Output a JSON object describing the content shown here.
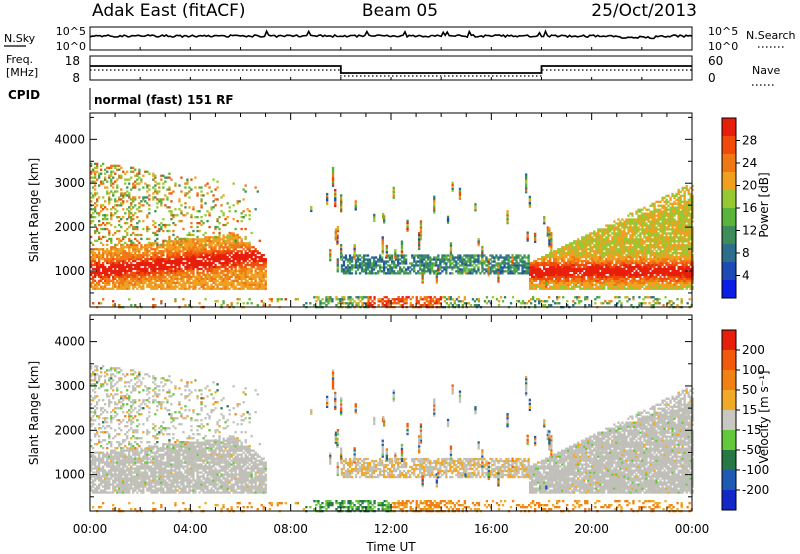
{
  "header": {
    "station": "Adak East (fitACF)",
    "beam": "Beam 05",
    "date": "25/Oct/2013"
  },
  "top_panels": {
    "nsky_label": "N.Sky",
    "nsearch_label": "N.Search",
    "nsky_ticks": [
      "10^5",
      "10^0"
    ],
    "freq_label_1": "Freq.",
    "freq_label_2": "[MHz]",
    "freq_ticks": [
      "18",
      "8"
    ],
    "nave_label": "Nave",
    "nave_ticks": [
      "60",
      "0"
    ],
    "cpid_label": "CPID",
    "cpid_text": "normal (fast) 151 RF"
  },
  "colors": {
    "power": [
      "#0a1ee6",
      "#1e4ab4",
      "#2c6e8c",
      "#3d8c5a",
      "#5ab43c",
      "#96c832",
      "#f0a01e",
      "#f07814",
      "#f04b0a",
      "#e61e0a"
    ],
    "velocity": [
      "#1428c8",
      "#1e5ab4",
      "#287846",
      "#64c83c",
      "#c8c8c0",
      "#f0aa28",
      "#f08214",
      "#f05a0a",
      "#e61e0a"
    ],
    "ground_scatter": "#c0c0b8"
  },
  "chart_data": [
    {
      "type": "heatmap",
      "name": "power",
      "xlabel": "",
      "ylabel": "Slant Range [km]",
      "x_ticks": [
        "00:00",
        "04:00",
        "08:00",
        "12:00",
        "16:00",
        "20:00",
        "00:00"
      ],
      "y_ticks": [
        "1000",
        "2000",
        "3000",
        "4000"
      ],
      "xlim": [
        0,
        24
      ],
      "ylim": [
        180,
        4600
      ],
      "colorbar_label": "Power [dB]",
      "colorbar_ticks": [
        "28",
        "24",
        "20",
        "16",
        "12",
        "8",
        "4"
      ],
      "clim": [
        0,
        30
      ]
    },
    {
      "type": "heatmap",
      "name": "velocity",
      "xlabel": "Time UT",
      "ylabel": "Slant Range [km]",
      "x_ticks": [
        "00:00",
        "04:00",
        "08:00",
        "12:00",
        "16:00",
        "20:00",
        "00:00"
      ],
      "y_ticks": [
        "1000",
        "2000",
        "3000",
        "4000"
      ],
      "xlim": [
        0,
        24
      ],
      "ylim": [
        180,
        4600
      ],
      "colorbar_label": "Velocity [m s⁻¹]",
      "colorbar_ticks": [
        "200",
        "100",
        "50",
        "15",
        "-15",
        "-50",
        "-100",
        "-200"
      ],
      "clim": [
        -250,
        250
      ]
    }
  ]
}
